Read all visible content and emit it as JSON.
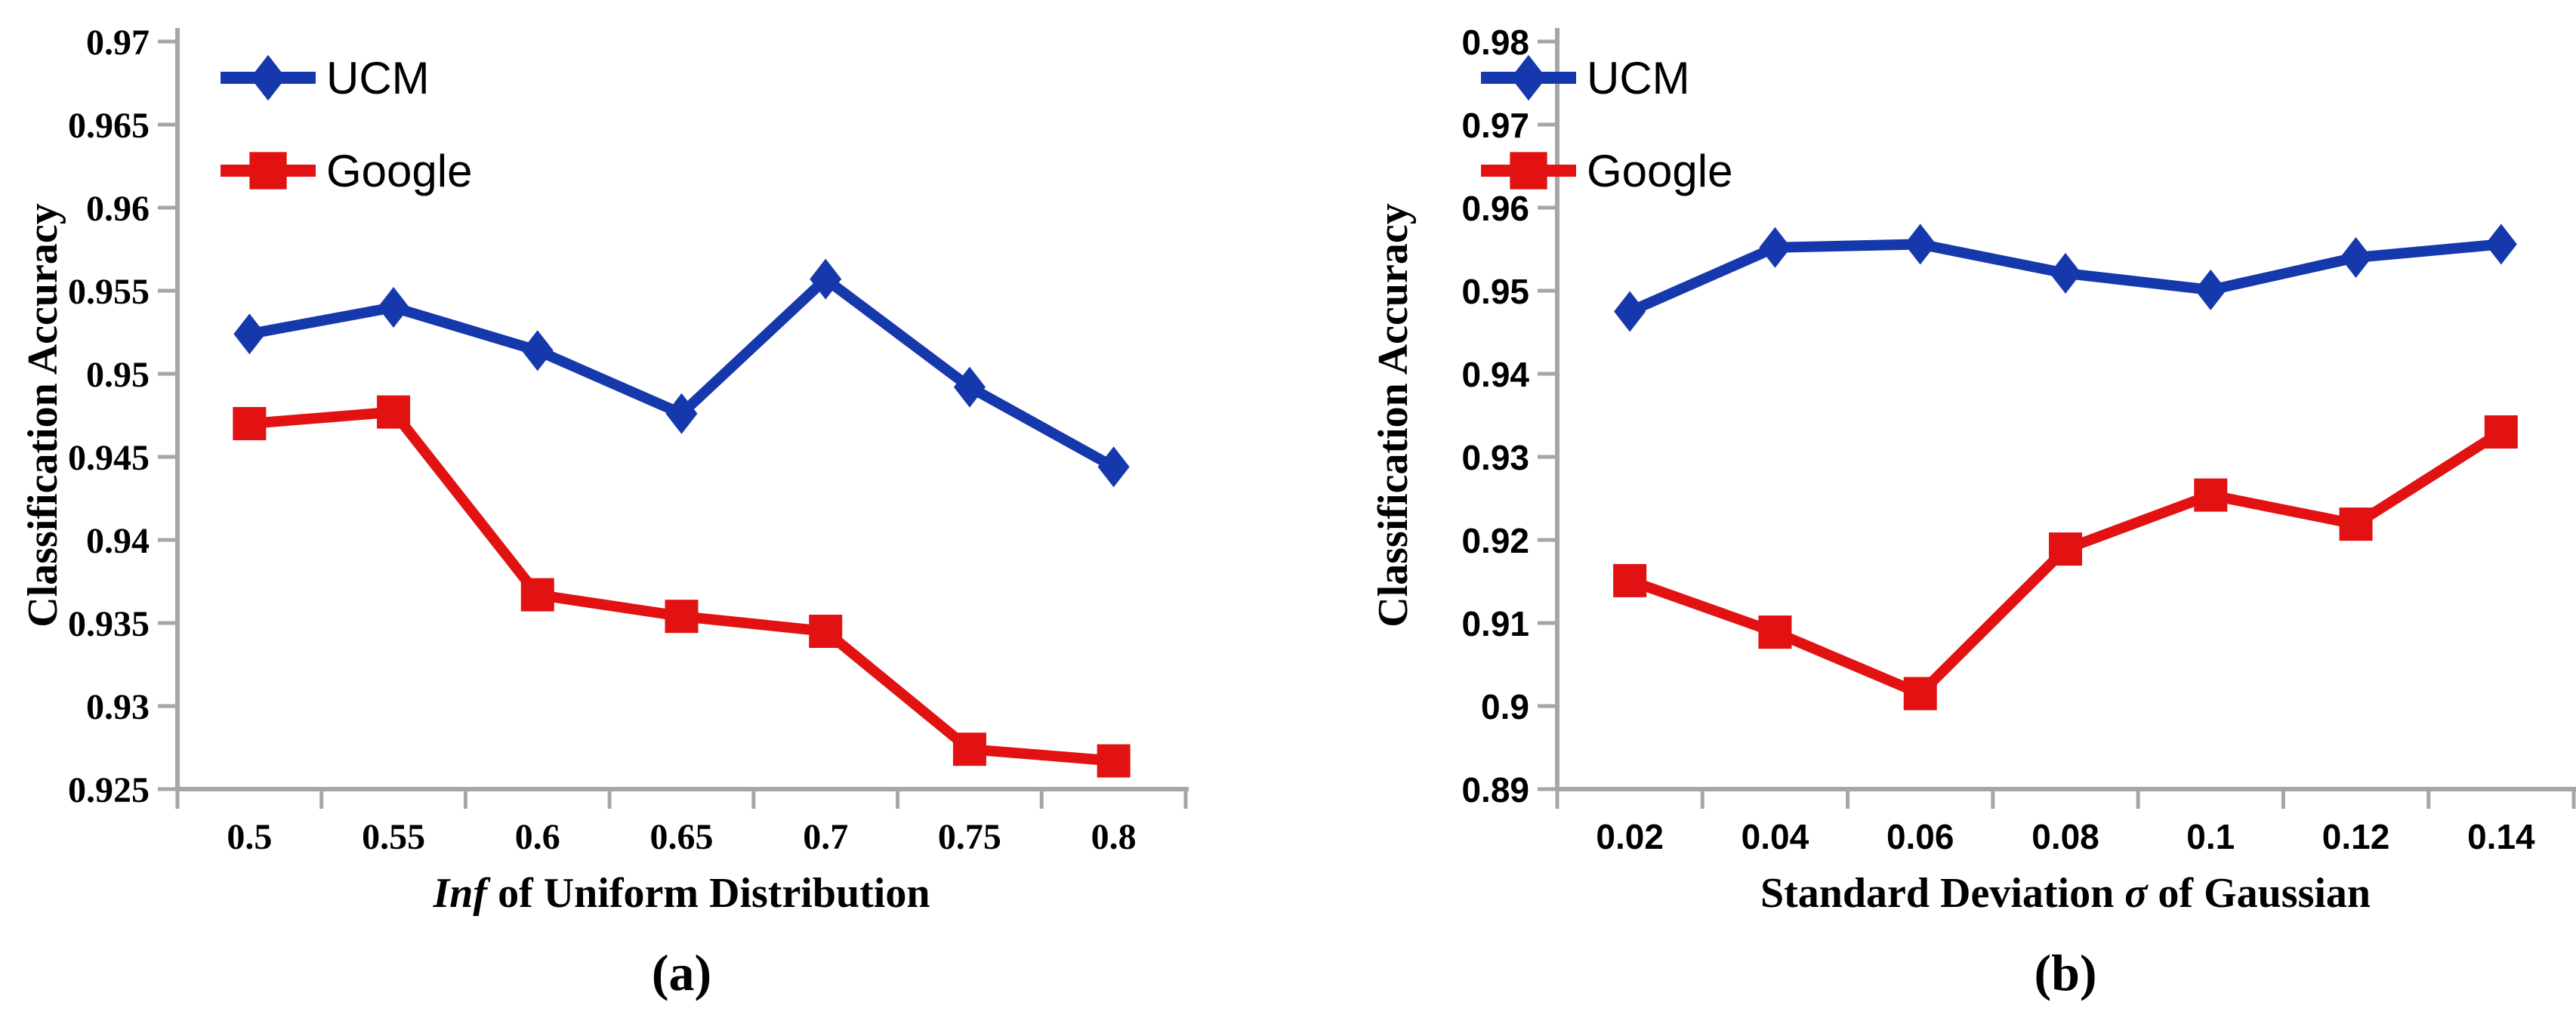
{
  "figure": {
    "background": "#ffffff",
    "axis_color": "#a6a6a6",
    "text_color": "#000000",
    "panel_a_label": "(a)",
    "panel_b_label": "(b)"
  },
  "chart_data": [
    {
      "type": "line",
      "panel": "a",
      "ylabel": "Classification Accuracy",
      "xlabel_pre": "",
      "xlabel_italic": "Inf",
      "xlabel_post": " of Uniform Distribution",
      "categories": [
        "0.5",
        "0.55",
        "0.6",
        "0.65",
        "0.7",
        "0.75",
        "0.8"
      ],
      "ylim": [
        0.925,
        0.97
      ],
      "yticks": [
        "0.97",
        "0.965",
        "0.96",
        "0.955",
        "0.95",
        "0.945",
        "0.94",
        "0.935",
        "0.93",
        "0.925"
      ],
      "grid": false,
      "legend_position": "top-left",
      "series": [
        {
          "name": "UCM",
          "marker": "diamond",
          "color": "#1638ad",
          "values": [
            0.9524,
            0.954,
            0.9514,
            0.9476,
            0.9557,
            0.9492,
            0.9444
          ]
        },
        {
          "name": "Google",
          "marker": "square",
          "color": "#e21212",
          "values": [
            0.947,
            0.9477,
            0.9367,
            0.9354,
            0.9345,
            0.9274,
            0.9267
          ]
        }
      ]
    },
    {
      "type": "line",
      "panel": "b",
      "ylabel": "Classification Accuracy",
      "xlabel_pre": "Standard Deviation ",
      "xlabel_italic": "σ",
      "xlabel_post": " of Gaussian",
      "categories": [
        "0.02",
        "0.04",
        "0.06",
        "0.08",
        "0.1",
        "0.12",
        "0.14"
      ],
      "ylim": [
        0.89,
        0.98
      ],
      "yticks": [
        "0.98",
        "0.97",
        "0.96",
        "0.95",
        "0.94",
        "0.93",
        "0.92",
        "0.91",
        "0.9",
        "0.89"
      ],
      "grid": false,
      "legend_position": "top-left",
      "series": [
        {
          "name": "UCM",
          "marker": "diamond",
          "color": "#1638ad",
          "values": [
            0.9475,
            0.9552,
            0.9556,
            0.9521,
            0.9501,
            0.954,
            0.9556
          ]
        },
        {
          "name": "Google",
          "marker": "square",
          "color": "#e21212",
          "values": [
            0.9151,
            0.9089,
            0.9015,
            0.9189,
            0.9254,
            0.9219,
            0.933
          ]
        }
      ]
    }
  ]
}
